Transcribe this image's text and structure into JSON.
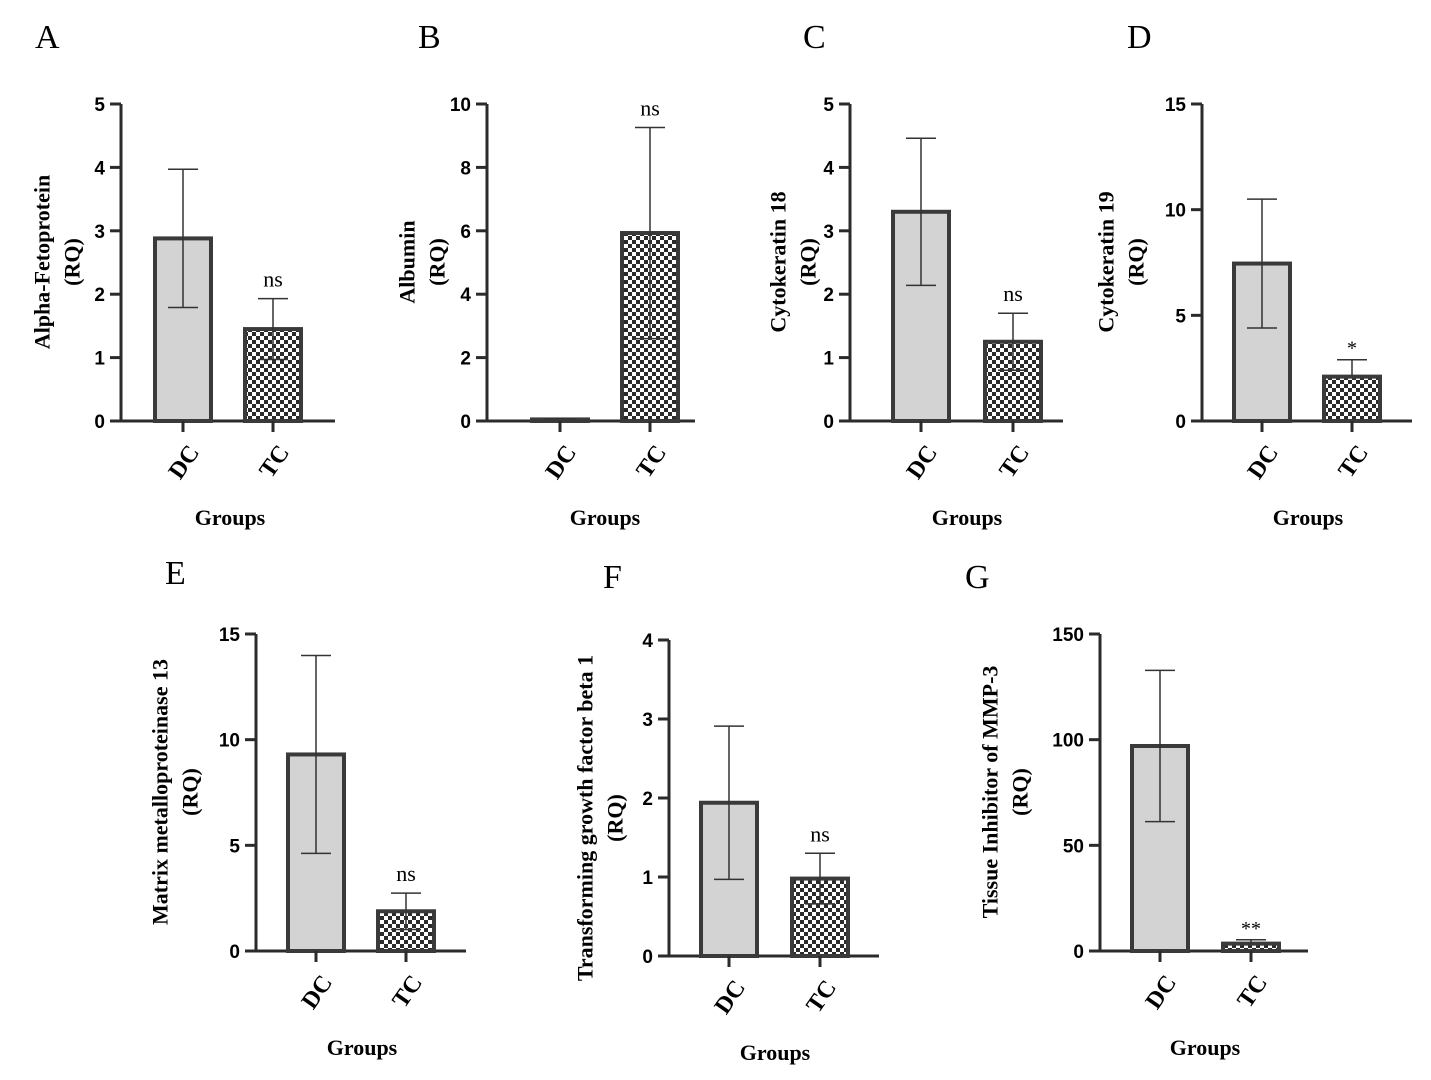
{
  "colors": {
    "dc_fill": "#d3d3d3",
    "tc_fill_light": "#ffffff",
    "tc_fill_dark": "#2b2b2b",
    "bar_stroke": "#3a3a3a",
    "axis": "#2b2b2b"
  },
  "chart_data": [
    {
      "panel": "A",
      "type": "bar",
      "ylabel_lines": [
        "Alpha-Fetoprotein",
        "(RQ)"
      ],
      "xlabel": "Groups",
      "categories": [
        "DC",
        "TC"
      ],
      "values": [
        2.88,
        1.45
      ],
      "errors": [
        1.09,
        0.48
      ],
      "error_lower": [
        true,
        true
      ],
      "significance": [
        "",
        "ns"
      ],
      "yticks": [
        "0",
        "1",
        "2",
        "3",
        "4",
        "5"
      ],
      "ylim": [
        0,
        5
      ]
    },
    {
      "panel": "B",
      "type": "bar",
      "ylabel_lines": [
        "Albumin",
        "(RQ)"
      ],
      "xlabel": "Groups",
      "categories": [
        "DC",
        "TC"
      ],
      "values": [
        0.05,
        5.93
      ],
      "errors": [
        0.02,
        3.33
      ],
      "error_lower": [
        false,
        true
      ],
      "significance": [
        "",
        "ns"
      ],
      "yticks": [
        "0",
        "2",
        "4",
        "6",
        "8",
        "10"
      ],
      "ylim": [
        0,
        10
      ]
    },
    {
      "panel": "C",
      "type": "bar",
      "ylabel_lines": [
        "Cytokeratin 18",
        "(RQ)"
      ],
      "xlabel": "Groups",
      "categories": [
        "DC",
        "TC"
      ],
      "values": [
        3.3,
        1.25
      ],
      "errors": [
        1.16,
        0.45
      ],
      "error_lower": [
        true,
        true
      ],
      "significance": [
        "",
        "ns"
      ],
      "yticks": [
        "0",
        "1",
        "2",
        "3",
        "4",
        "5"
      ],
      "ylim": [
        0,
        5
      ]
    },
    {
      "panel": "D",
      "type": "bar",
      "ylabel_lines": [
        "Cytokeratin 19",
        "(RQ)"
      ],
      "xlabel": "Groups",
      "categories": [
        "DC",
        "TC"
      ],
      "values": [
        7.45,
        2.1
      ],
      "errors": [
        3.05,
        0.8
      ],
      "error_lower": [
        true,
        false
      ],
      "significance": [
        "",
        "*"
      ],
      "yticks": [
        "0",
        "5",
        "10",
        "15"
      ],
      "ylim": [
        0,
        15
      ]
    },
    {
      "panel": "E",
      "type": "bar",
      "ylabel_lines": [
        "Matrix metalloproteinase 13",
        "(RQ)"
      ],
      "xlabel": "Groups",
      "categories": [
        "DC",
        "TC"
      ],
      "values": [
        9.3,
        1.88
      ],
      "errors": [
        4.68,
        0.86
      ],
      "error_lower": [
        true,
        true
      ],
      "significance": [
        "",
        "ns"
      ],
      "yticks": [
        "0",
        "5",
        "10",
        "15"
      ],
      "ylim": [
        0,
        15
      ]
    },
    {
      "panel": "F",
      "type": "bar",
      "ylabel_lines": [
        "Transforming growth factor beta 1",
        "(RQ)"
      ],
      "xlabel": "Groups",
      "categories": [
        "DC",
        "TC"
      ],
      "values": [
        1.94,
        0.98
      ],
      "errors": [
        0.97,
        0.32
      ],
      "error_lower": [
        true,
        true
      ],
      "significance": [
        "",
        "ns"
      ],
      "yticks": [
        "0",
        "1",
        "2",
        "3",
        "4"
      ],
      "ylim": [
        0,
        4
      ]
    },
    {
      "panel": "G",
      "type": "bar",
      "ylabel_lines": [
        "Tissue Inhibitor of MMP-3",
        "(RQ)"
      ],
      "xlabel": "Groups",
      "categories": [
        "DC",
        "TC"
      ],
      "values": [
        97,
        3.5
      ],
      "errors": [
        35.8,
        1.8
      ],
      "error_lower": [
        true,
        false
      ],
      "significance": [
        "",
        "**"
      ],
      "yticks": [
        "0",
        "50",
        "100",
        "150"
      ],
      "ylim": [
        0,
        150
      ]
    }
  ]
}
